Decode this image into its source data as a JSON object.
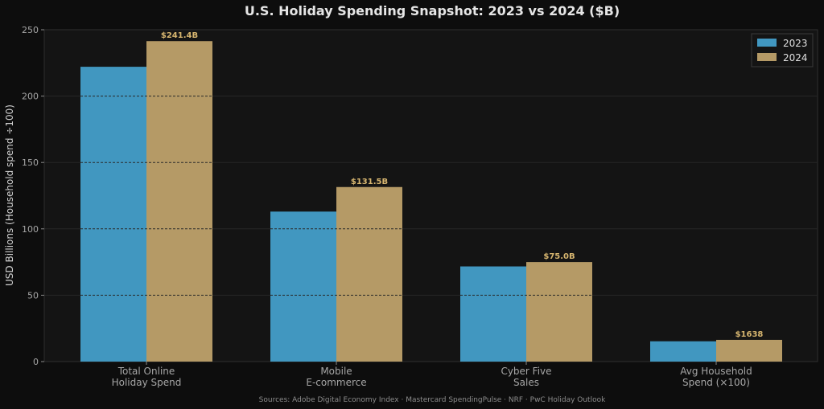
{
  "chart_data": {
    "type": "bar",
    "title": "U.S. Holiday Spending Snapshot: 2023 vs 2024  ($B)",
    "ylabel": "USD Billions  (Household spend ÷100)",
    "categories": [
      [
        "Total Online",
        "Holiday Spend"
      ],
      [
        "Mobile",
        "E-commerce"
      ],
      [
        "Cyber Five",
        "Sales"
      ],
      [
        "Avg Household",
        "Spend (×100)"
      ]
    ],
    "series": [
      {
        "name": "2023",
        "color": "#4197c0",
        "values": [
          222.1,
          113.0,
          71.7,
          15.3
        ]
      },
      {
        "name": "2024",
        "color": "#b59a66",
        "values": [
          241.4,
          131.5,
          75.0,
          16.38
        ]
      }
    ],
    "data_labels": [
      "$241.4B",
      "$131.5B",
      "$75.0B",
      "$1638"
    ],
    "ylim": [
      0,
      250
    ],
    "yticks": [
      0,
      50,
      100,
      150,
      200,
      250
    ],
    "grid": true,
    "legend_position": "top-right",
    "source": "Sources: Adobe Digital Economy Index · Mastercard SpendingPulse · NRF · PwC Holiday Outlook"
  }
}
